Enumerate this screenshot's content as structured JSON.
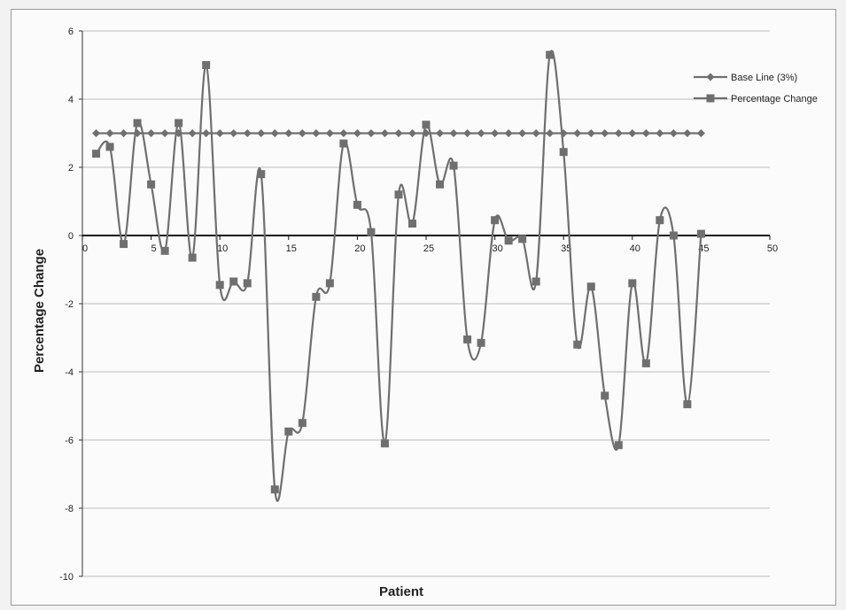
{
  "chart_data": {
    "type": "line",
    "title": "",
    "xlabel": "Patient",
    "ylabel": "Percentage Change",
    "xlim": [
      0,
      50
    ],
    "ylim": [
      -10,
      6
    ],
    "x_ticks": [
      0,
      5,
      10,
      15,
      20,
      25,
      30,
      35,
      40,
      45,
      50
    ],
    "y_ticks": [
      -10,
      -8,
      -6,
      -4,
      -2,
      0,
      2,
      4,
      6
    ],
    "grid": "horizontal",
    "legend_position": "top-right",
    "series": [
      {
        "name": "Base Line (3%)",
        "marker": "diamond",
        "smooth": false,
        "color": "#6f6f6f",
        "x": [
          1,
          2,
          3,
          4,
          5,
          6,
          7,
          8,
          9,
          10,
          11,
          12,
          13,
          14,
          15,
          16,
          17,
          18,
          19,
          20,
          21,
          22,
          23,
          24,
          25,
          26,
          27,
          28,
          29,
          30,
          31,
          32,
          33,
          34,
          35,
          36,
          37,
          38,
          39,
          40,
          41,
          42,
          43,
          44,
          45
        ],
        "y": [
          3,
          3,
          3,
          3,
          3,
          3,
          3,
          3,
          3,
          3,
          3,
          3,
          3,
          3,
          3,
          3,
          3,
          3,
          3,
          3,
          3,
          3,
          3,
          3,
          3,
          3,
          3,
          3,
          3,
          3,
          3,
          3,
          3,
          3,
          3,
          3,
          3,
          3,
          3,
          3,
          3,
          3,
          3,
          3,
          3
        ]
      },
      {
        "name": "Percentage Change",
        "marker": "square",
        "smooth": true,
        "color": "#6f6f6f",
        "x": [
          1,
          2,
          3,
          4,
          5,
          6,
          7,
          8,
          9,
          10,
          11,
          12,
          13,
          14,
          15,
          16,
          17,
          18,
          19,
          20,
          21,
          22,
          23,
          24,
          25,
          26,
          27,
          28,
          29,
          30,
          31,
          32,
          33,
          34,
          35,
          36,
          37,
          38,
          39,
          40,
          41,
          42,
          43,
          44,
          45
        ],
        "y": [
          2.4,
          2.6,
          -0.25,
          3.3,
          1.5,
          -0.45,
          3.3,
          -0.65,
          5.0,
          -1.45,
          -1.35,
          -1.4,
          1.8,
          -7.45,
          -5.75,
          -5.5,
          -1.8,
          -1.4,
          2.7,
          0.9,
          0.1,
          -6.1,
          1.2,
          0.35,
          3.25,
          1.5,
          2.05,
          -3.05,
          -3.15,
          0.45,
          -0.15,
          -0.1,
          -1.35,
          5.3,
          2.45,
          -3.2,
          -1.5,
          -4.7,
          -6.15,
          -1.4,
          -3.75,
          0.45,
          0.0,
          -4.95,
          0.05
        ]
      }
    ]
  }
}
